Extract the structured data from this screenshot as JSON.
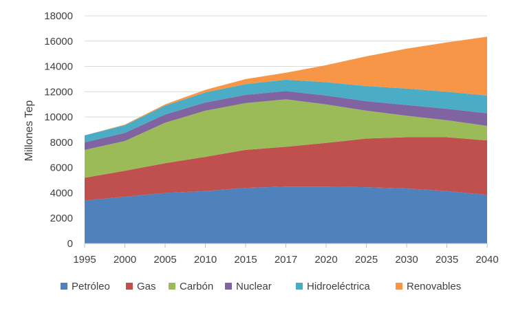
{
  "chart_data": {
    "type": "area",
    "stacked": true,
    "ylabel": "Millones Tep",
    "xlabel": "",
    "ylim": [
      0,
      18000
    ],
    "yticks": [
      0,
      2000,
      4000,
      6000,
      8000,
      10000,
      12000,
      14000,
      16000,
      18000
    ],
    "categories": [
      "1995",
      "2000",
      "2005",
      "2010",
      "2015",
      "2017",
      "2020",
      "2025",
      "2030",
      "2035",
      "2040"
    ],
    "grid": true,
    "legend": "bottom",
    "series": [
      {
        "name": "Petróleo",
        "color": "#4F81BD",
        "values": [
          3400,
          3700,
          4000,
          4150,
          4400,
          4500,
          4500,
          4450,
          4350,
          4150,
          3850
        ]
      },
      {
        "name": "Gas",
        "color": "#C0504D",
        "values": [
          1800,
          2050,
          2350,
          2700,
          3000,
          3150,
          3450,
          3850,
          4050,
          4250,
          4300
        ]
      },
      {
        "name": "Carbón",
        "color": "#9BBB59",
        "values": [
          2200,
          2350,
          3200,
          3650,
          3700,
          3750,
          3050,
          2200,
          1700,
          1350,
          1150
        ]
      },
      {
        "name": "Nuclear",
        "color": "#8064A2",
        "values": [
          600,
          650,
          650,
          650,
          650,
          650,
          700,
          750,
          850,
          900,
          1000
        ]
      },
      {
        "name": "Hidroeléctrica",
        "color": "#4BACC6",
        "values": [
          550,
          600,
          700,
          800,
          850,
          900,
          1050,
          1200,
          1300,
          1350,
          1400
        ]
      },
      {
        "name": "Renovables",
        "color": "#F79646",
        "values": [
          0,
          50,
          100,
          200,
          400,
          550,
          1350,
          2350,
          3150,
          3900,
          4650
        ]
      }
    ]
  }
}
